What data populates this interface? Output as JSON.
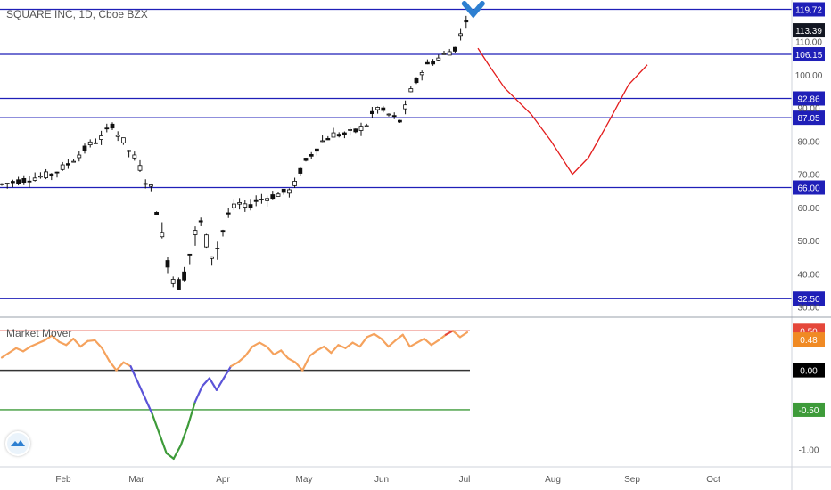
{
  "header": {
    "title": "SQUARE INC, 1D, Cboe BZX"
  },
  "indicator": {
    "title": "Market Mover"
  },
  "colors": {
    "hline": "#1f1fb8",
    "candle": "#111111",
    "projection": "#e31c1c",
    "osc_orange": "#f5a25d",
    "osc_blue": "#5b54d8",
    "osc_green": "#3e9b3a",
    "osc_red": "#e5473a",
    "marker": "#2d7fd1"
  },
  "chart_data": [
    {
      "type": "candlestick",
      "title": "SQUARE INC, 1D, Cboe BZX",
      "x_axis": {
        "ticks": [
          "Feb",
          "Mar",
          "Apr",
          "May",
          "Jun",
          "Jul",
          "Aug",
          "Sep",
          "Oct"
        ]
      },
      "y_axis": {
        "ticks": [
          "30.00",
          "40.00",
          "50.00",
          "60.00",
          "70.00",
          "80.00",
          "90.00",
          "100.00",
          "110.00"
        ],
        "range": [
          28,
          122
        ]
      },
      "current_price": "113.39",
      "horizontal_levels": [
        "119.72",
        "106.15",
        "92.86",
        "87.05",
        "66.00",
        "32.50"
      ],
      "price_path": [
        [
          0,
          67
        ],
        [
          3,
          68
        ],
        [
          6,
          69
        ],
        [
          9,
          70
        ],
        [
          12,
          73
        ],
        [
          14,
          76
        ],
        [
          16,
          79
        ],
        [
          18,
          81
        ],
        [
          20,
          85
        ],
        [
          21,
          82
        ],
        [
          22,
          80
        ],
        [
          23,
          77
        ],
        [
          24,
          75
        ],
        [
          25,
          72
        ],
        [
          26,
          68
        ],
        [
          27,
          66
        ],
        [
          28,
          60
        ],
        [
          29,
          51
        ],
        [
          30,
          44
        ],
        [
          31,
          39
        ],
        [
          32,
          37
        ],
        [
          33,
          40
        ],
        [
          34,
          46
        ],
        [
          35,
          52
        ],
        [
          36,
          55
        ],
        [
          37,
          50
        ],
        [
          38,
          46
        ],
        [
          39,
          48
        ],
        [
          40,
          53
        ],
        [
          41,
          58
        ],
        [
          42,
          60
        ],
        [
          43,
          61
        ],
        [
          44,
          60
        ],
        [
          46,
          62
        ],
        [
          48,
          63
        ],
        [
          50,
          64
        ],
        [
          52,
          65
        ],
        [
          53,
          67
        ],
        [
          54,
          71
        ],
        [
          55,
          74
        ],
        [
          56,
          76
        ],
        [
          57,
          78
        ],
        [
          58,
          80
        ],
        [
          60,
          82
        ],
        [
          62,
          82
        ],
        [
          64,
          83
        ],
        [
          66,
          85
        ],
        [
          67,
          88
        ],
        [
          68,
          90
        ],
        [
          69,
          89
        ],
        [
          70,
          88
        ],
        [
          71,
          87
        ],
        [
          72,
          86
        ],
        [
          73,
          90
        ],
        [
          74,
          95
        ],
        [
          75,
          98
        ],
        [
          76,
          101
        ],
        [
          77,
          103
        ],
        [
          78,
          104
        ],
        [
          79,
          105
        ],
        [
          80,
          106
        ],
        [
          81,
          107
        ],
        [
          82,
          108
        ],
        [
          83,
          112
        ],
        [
          84,
          117
        ]
      ],
      "projection": [
        [
          "Jul",
          108
        ],
        [
          "Jul",
          103
        ],
        [
          "Jul",
          96
        ],
        [
          "Jul",
          92
        ],
        [
          "Aug",
          88
        ],
        [
          "Aug",
          80
        ],
        [
          "Aug",
          70
        ],
        [
          "Aug",
          75
        ],
        [
          "Sep",
          86
        ],
        [
          "Sep",
          97
        ],
        [
          "Sep",
          103
        ]
      ]
    },
    {
      "type": "line",
      "title": "Market Mover",
      "y_axis": {
        "ticks": [
          "-1.00"
        ],
        "range": [
          -1.2,
          0.65
        ]
      },
      "levels": [
        "0.50",
        "0.00",
        "-0.50"
      ],
      "current_value": "0.48",
      "series_values": [
        0.16,
        0.22,
        0.28,
        0.24,
        0.3,
        0.34,
        0.38,
        0.44,
        0.36,
        0.32,
        0.4,
        0.3,
        0.37,
        0.38,
        0.28,
        0.12,
        0.0,
        0.1,
        0.05,
        -0.15,
        -0.35,
        -0.55,
        -0.8,
        -1.05,
        -1.12,
        -0.95,
        -0.7,
        -0.4,
        -0.2,
        -0.1,
        -0.25,
        -0.1,
        0.05,
        0.1,
        0.18,
        0.3,
        0.35,
        0.3,
        0.2,
        0.25,
        0.15,
        0.1,
        0.0,
        0.18,
        0.25,
        0.3,
        0.22,
        0.32,
        0.28,
        0.35,
        0.3,
        0.42,
        0.46,
        0.4,
        0.3,
        0.38,
        0.45,
        0.3,
        0.35,
        0.4,
        0.32,
        0.38,
        0.45,
        0.5,
        0.42,
        0.48
      ]
    }
  ]
}
